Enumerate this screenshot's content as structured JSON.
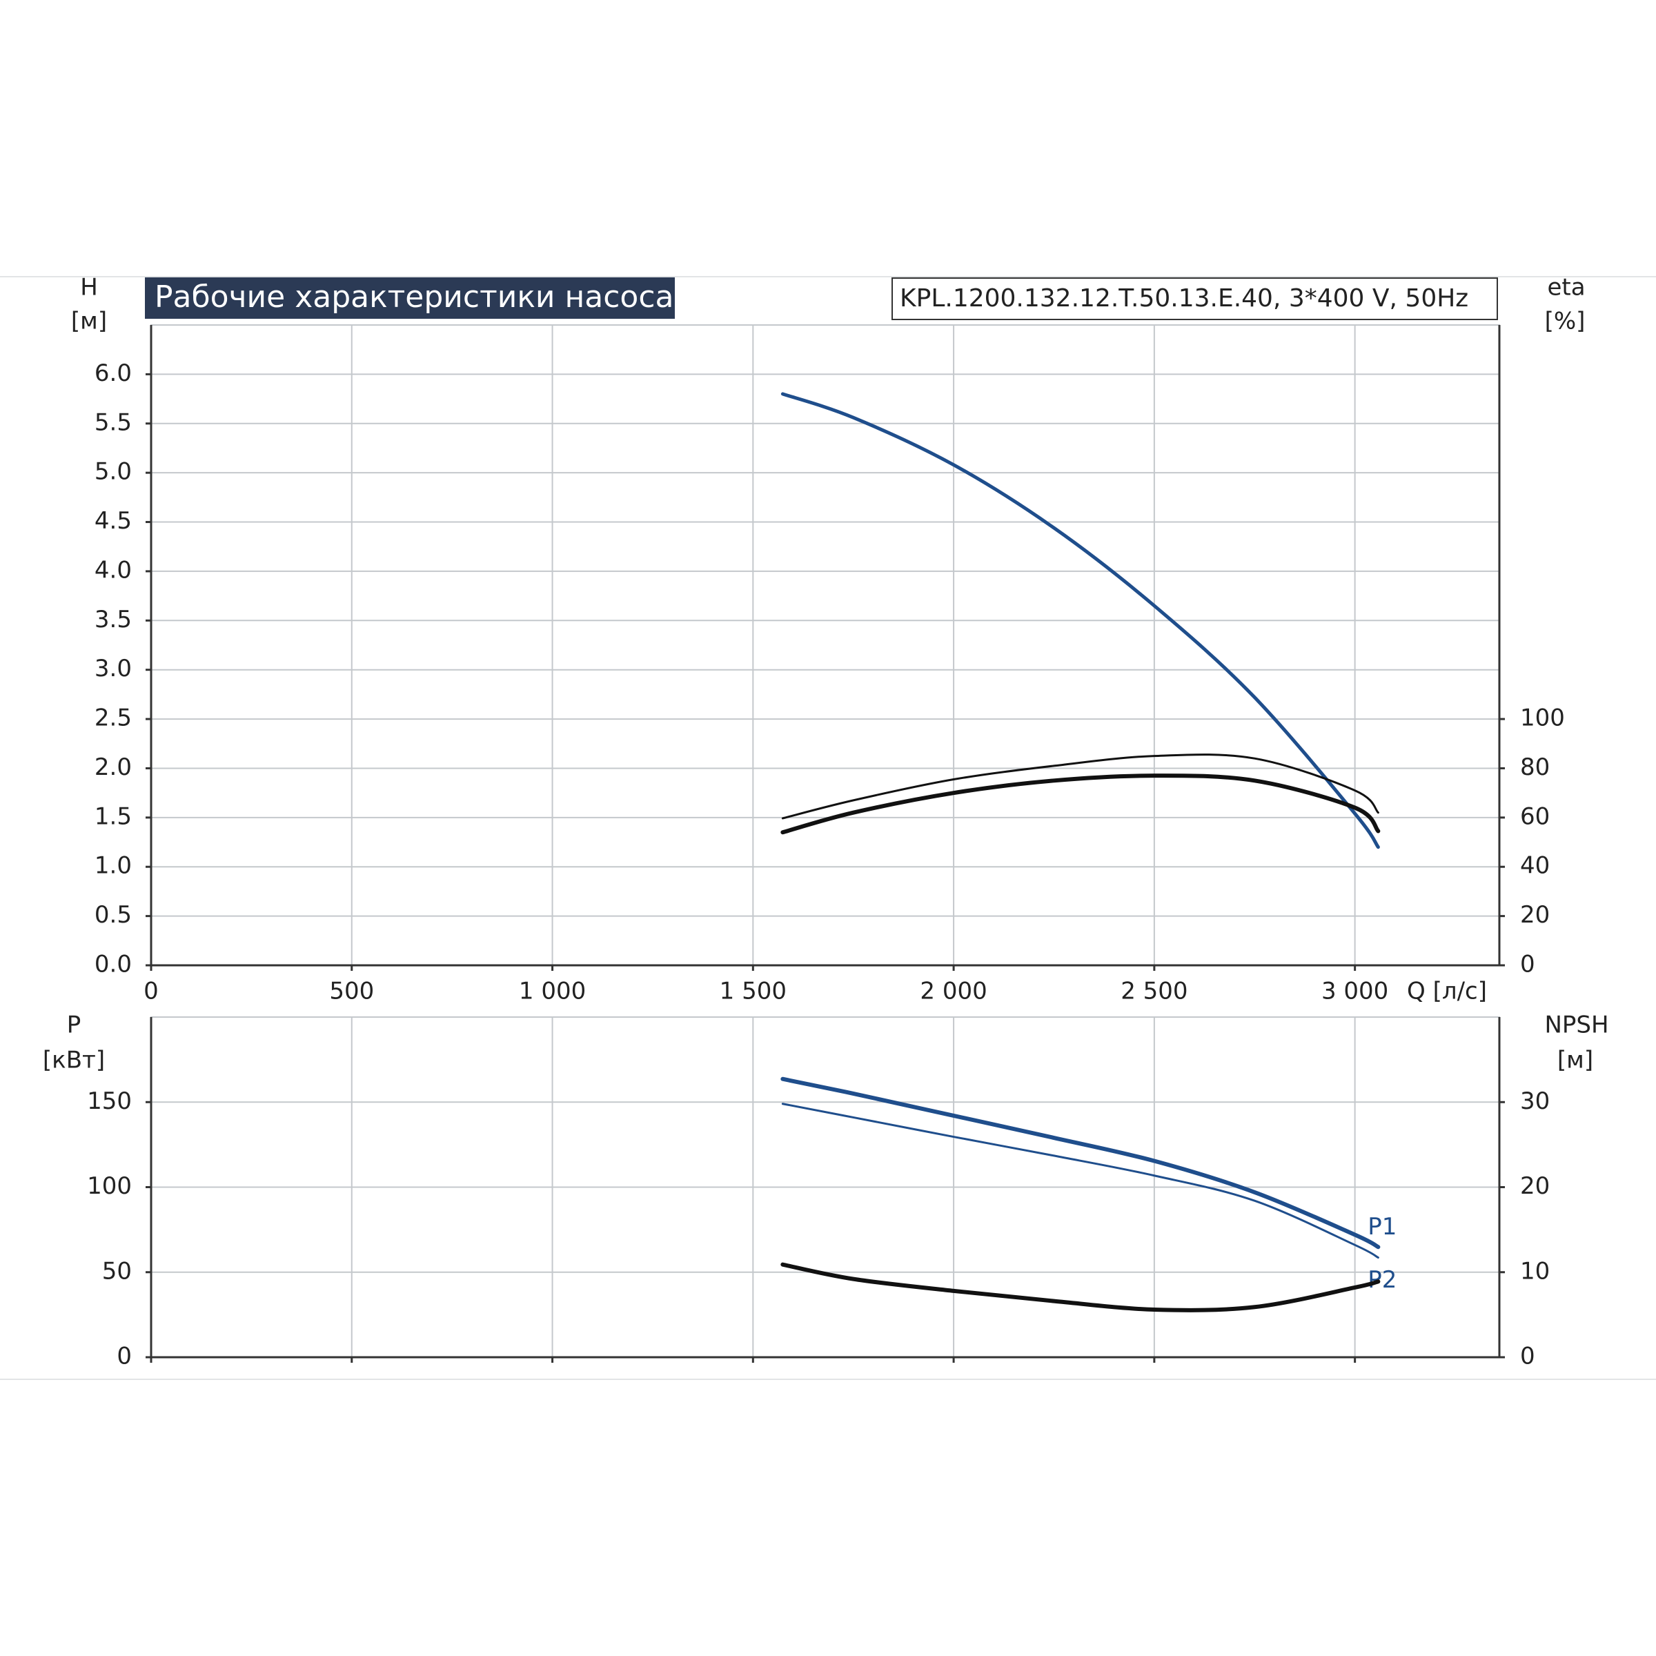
{
  "chart_data": [
    {
      "type": "line",
      "title": "Рабочие характеристики насоса",
      "subtitle": "KPL.1200.132.12.T.50.13.E.40, 3*400 V, 50Hz",
      "ylabel": "H",
      "yunit": "[м]",
      "y2label": "eta",
      "y2unit": "[%]",
      "xlabel": "Q [л/с]",
      "grid": true,
      "xlim": [
        0,
        3360
      ],
      "xticks": [
        0,
        500,
        {
          "value": 1000,
          "label": "1 000"
        },
        {
          "value": 1500,
          "label": "1 500"
        },
        {
          "value": 2000,
          "label": "2 000"
        },
        {
          "value": 2500,
          "label": "2 500"
        },
        {
          "value": 3000,
          "label": "3 000"
        }
      ],
      "ylim": [
        0,
        6.5
      ],
      "yticks": [
        {
          "value": 0,
          "label": "0.0"
        },
        0.5,
        {
          "value": 1,
          "label": "1.0"
        },
        1.5,
        {
          "value": 2,
          "label": "2.0"
        },
        2.5,
        {
          "value": 3,
          "label": "3.0"
        },
        3.5,
        {
          "value": 4,
          "label": "4.0"
        },
        4.5,
        {
          "value": 5,
          "label": "5.0"
        },
        5.5,
        {
          "value": 6,
          "label": "6.0"
        }
      ],
      "y2lim": [
        0,
        260
      ],
      "y2ticks": [
        0,
        20,
        40,
        60,
        80,
        100
      ],
      "x": [
        1574,
        1750,
        2000,
        2250,
        2500,
        2750,
        3000,
        3058
      ],
      "series": [
        {
          "color": "#1f4e8c",
          "values": [
            5.8,
            5.56,
            5.08,
            4.44,
            3.65,
            2.72,
            1.54,
            1.2
          ]
        },
        {
          "color": "#111111",
          "axis": "y2",
          "values": [
            59.7,
            67,
            75.5,
            81,
            85,
            84,
            71,
            62
          ]
        },
        {
          "color": "#111111",
          "axis": "y2",
          "values": [
            54,
            62,
            70,
            75,
            77,
            75,
            64,
            54.5
          ]
        }
      ]
    },
    {
      "type": "line",
      "ylabel": "P",
      "yunit": "[кВт]",
      "y2label": "NPSH",
      "y2unit": "[м]",
      "grid": true,
      "xlim": [
        0,
        3360
      ],
      "xticks": [
        0,
        500,
        1000,
        1500,
        2000,
        2500,
        3000
      ],
      "ylim": [
        0,
        200
      ],
      "yticks": [
        0,
        50,
        100,
        150
      ],
      "y2lim": [
        0,
        40
      ],
      "y2ticks": [
        0,
        10,
        20,
        30
      ],
      "x": [
        1574,
        1750,
        2000,
        2250,
        2500,
        2750,
        3000,
        3058
      ],
      "series": [
        {
          "name": "P1",
          "color": "#1f4e8c",
          "values": [
            163.6,
            155,
            142,
            129,
            115.4,
            97,
            72,
            64.8
          ]
        },
        {
          "name": "P2",
          "color": "#1f4e8c",
          "values": [
            149,
            141,
            129.6,
            118.5,
            106.8,
            92,
            66,
            58.6
          ]
        },
        {
          "color": "#111111",
          "axis": "y2",
          "values": [
            10.9,
            9.2,
            7.8,
            6.6,
            5.6,
            5.9,
            8.2,
            8.9
          ]
        }
      ]
    }
  ]
}
